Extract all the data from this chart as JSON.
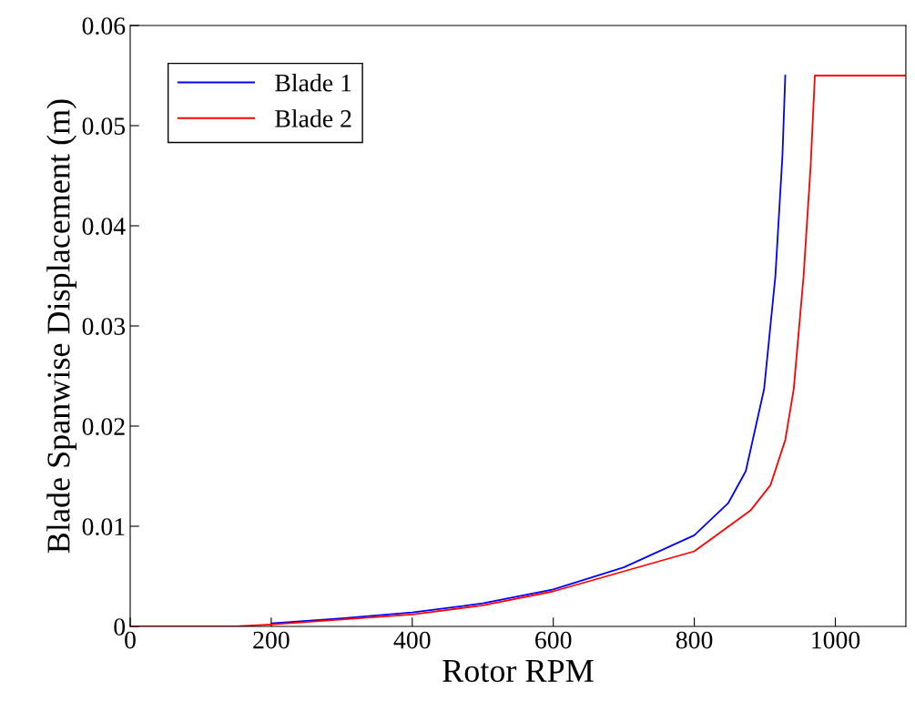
{
  "chart_data": {
    "type": "line",
    "xlabel": "Rotor RPM",
    "ylabel": "Blade Spanwise Displacement (m)",
    "xlim": [
      0,
      1100
    ],
    "xticks": [
      0,
      200,
      400,
      600,
      800,
      1000
    ],
    "ylim": [
      0,
      0.06
    ],
    "yticks": [
      0,
      0.01,
      0.02,
      0.03,
      0.04,
      0.05,
      0.06
    ],
    "grid": false,
    "legend": "top left",
    "line_style": "solid",
    "marker": "none",
    "series": [
      {
        "name": "Blade 1",
        "color": "#0000ff",
        "x": [
          200,
          300,
          400,
          500,
          600,
          700,
          800,
          848,
          873,
          899,
          915,
          925,
          929
        ],
        "values": [
          0.0003,
          0.0008,
          0.0014,
          0.0023,
          0.0037,
          0.0059,
          0.0091,
          0.0123,
          0.0155,
          0.0237,
          0.035,
          0.047,
          0.055
        ]
      },
      {
        "name": "Blade 2",
        "color": "#ff0000",
        "x": [
          0,
          150,
          200,
          300,
          400,
          500,
          600,
          700,
          800,
          880,
          908,
          929,
          941,
          955,
          965,
          971,
          1100
        ],
        "values": [
          0,
          0,
          0.0002,
          0.0007,
          0.0012,
          0.0021,
          0.0035,
          0.0055,
          0.0075,
          0.0116,
          0.0141,
          0.0186,
          0.0237,
          0.035,
          0.046,
          0.055,
          0.055
        ]
      }
    ]
  }
}
